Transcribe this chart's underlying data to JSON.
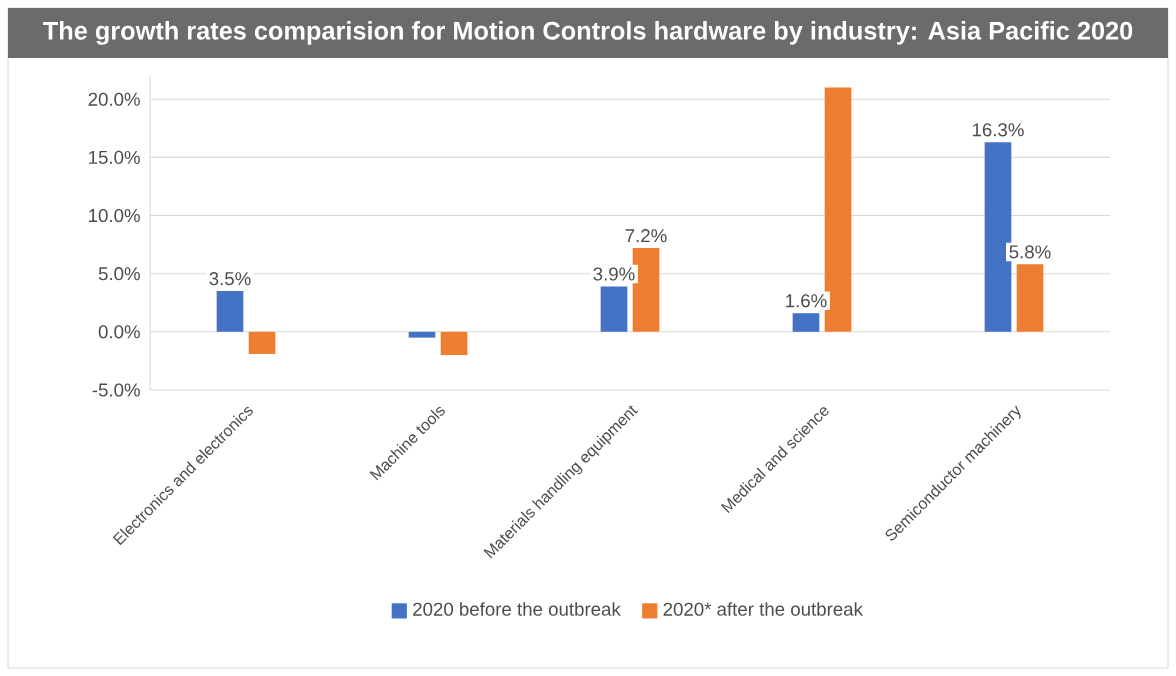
{
  "chart_data": {
    "type": "bar",
    "title": "The growth rates comparision for Motion Controls hardware by industry: Asia Pacific 2020",
    "categories": [
      "Electronics and electronics",
      "Machine tools",
      "Materials handling equipment",
      "Medical and science",
      "Semiconductor machinery"
    ],
    "series": [
      {
        "name": "2020 before the outbreak",
        "color": "#4472c4",
        "values": [
          3.5,
          -0.5,
          3.9,
          1.6,
          16.3
        ],
        "value_labels": [
          "3.5%",
          null,
          "3.9%",
          "1.6%",
          "16.3%"
        ]
      },
      {
        "name": "2020* after the outbreak",
        "color": "#ed7d31",
        "values": [
          -1.9,
          -2.0,
          7.2,
          21.0,
          5.8
        ],
        "value_labels": [
          null,
          null,
          "7.2%",
          null,
          "5.8%"
        ]
      }
    ],
    "ylim": [
      -5,
      22
    ],
    "yticks": [
      {
        "value": -5,
        "label": "-5.0%"
      },
      {
        "value": 0,
        "label": "0.0%"
      },
      {
        "value": 5,
        "label": "5.0%"
      },
      {
        "value": 10,
        "label": "10.0%"
      },
      {
        "value": 15,
        "label": "15.0%"
      },
      {
        "value": 20,
        "label": "20.0%"
      }
    ],
    "grid": "y",
    "legend": "bottom"
  }
}
